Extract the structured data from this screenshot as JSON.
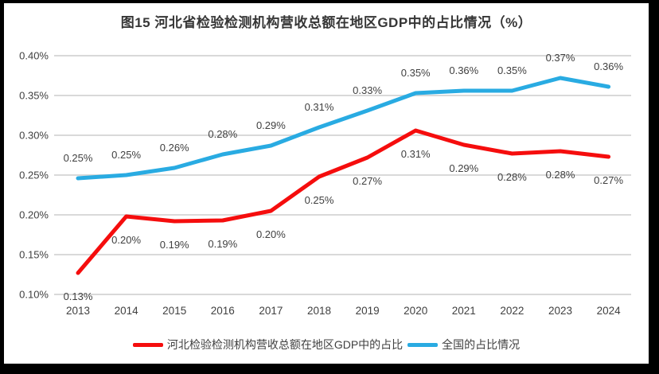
{
  "colors": {
    "background": "#000000",
    "panel": "#ffffff",
    "grid": "#d9d9d9",
    "text": "#404040",
    "title": "#363636"
  },
  "chart_data": {
    "type": "line",
    "title": "图15 河北省检验检测机构营收总额在地区GDP中的占比情况（%）",
    "categories": [
      "2013",
      "2014",
      "2015",
      "2016",
      "2017",
      "2018",
      "2019",
      "2020",
      "2021",
      "2022",
      "2023",
      "2024"
    ],
    "series": [
      {
        "name": "河北检验检测机构营收总额在地区GDP中的占比",
        "color": "#f50d0d",
        "values": [
          0.13,
          0.2,
          0.19,
          0.19,
          0.2,
          0.25,
          0.27,
          0.31,
          0.29,
          0.28,
          0.28,
          0.27
        ],
        "labels": [
          "0.13%",
          "0.20%",
          "0.19%",
          "0.19%",
          "0.20%",
          "0.25%",
          "0.27%",
          "0.31%",
          "0.29%",
          "0.28%",
          "0.28%",
          "0.27%"
        ],
        "plot_values": [
          0.127,
          0.198,
          0.192,
          0.193,
          0.205,
          0.248,
          0.272,
          0.306,
          0.288,
          0.277,
          0.28,
          0.273
        ],
        "label_side": "below"
      },
      {
        "name": "全国的占比情况",
        "color": "#29abe2",
        "values": [
          0.25,
          0.25,
          0.26,
          0.28,
          0.29,
          0.31,
          0.33,
          0.35,
          0.36,
          0.35,
          0.37,
          0.36
        ],
        "labels": [
          "0.25%",
          "0.25%",
          "0.26%",
          "0.28%",
          "0.29%",
          "0.31%",
          "0.33%",
          "0.35%",
          "0.36%",
          "0.35%",
          "0.37%",
          "0.36%"
        ],
        "plot_values": [
          0.246,
          0.25,
          0.259,
          0.276,
          0.287,
          0.31,
          0.331,
          0.353,
          0.356,
          0.356,
          0.372,
          0.361
        ],
        "label_side": "above"
      }
    ],
    "y_axis": {
      "tick_labels": [
        "0.40%",
        "0.35%",
        "0.30%",
        "0.25%",
        "0.20%",
        "0.15%",
        "0.10%"
      ],
      "min": 0.1,
      "max": 0.4,
      "step": 0.05
    },
    "grid": true,
    "legend_position": "bottom"
  }
}
